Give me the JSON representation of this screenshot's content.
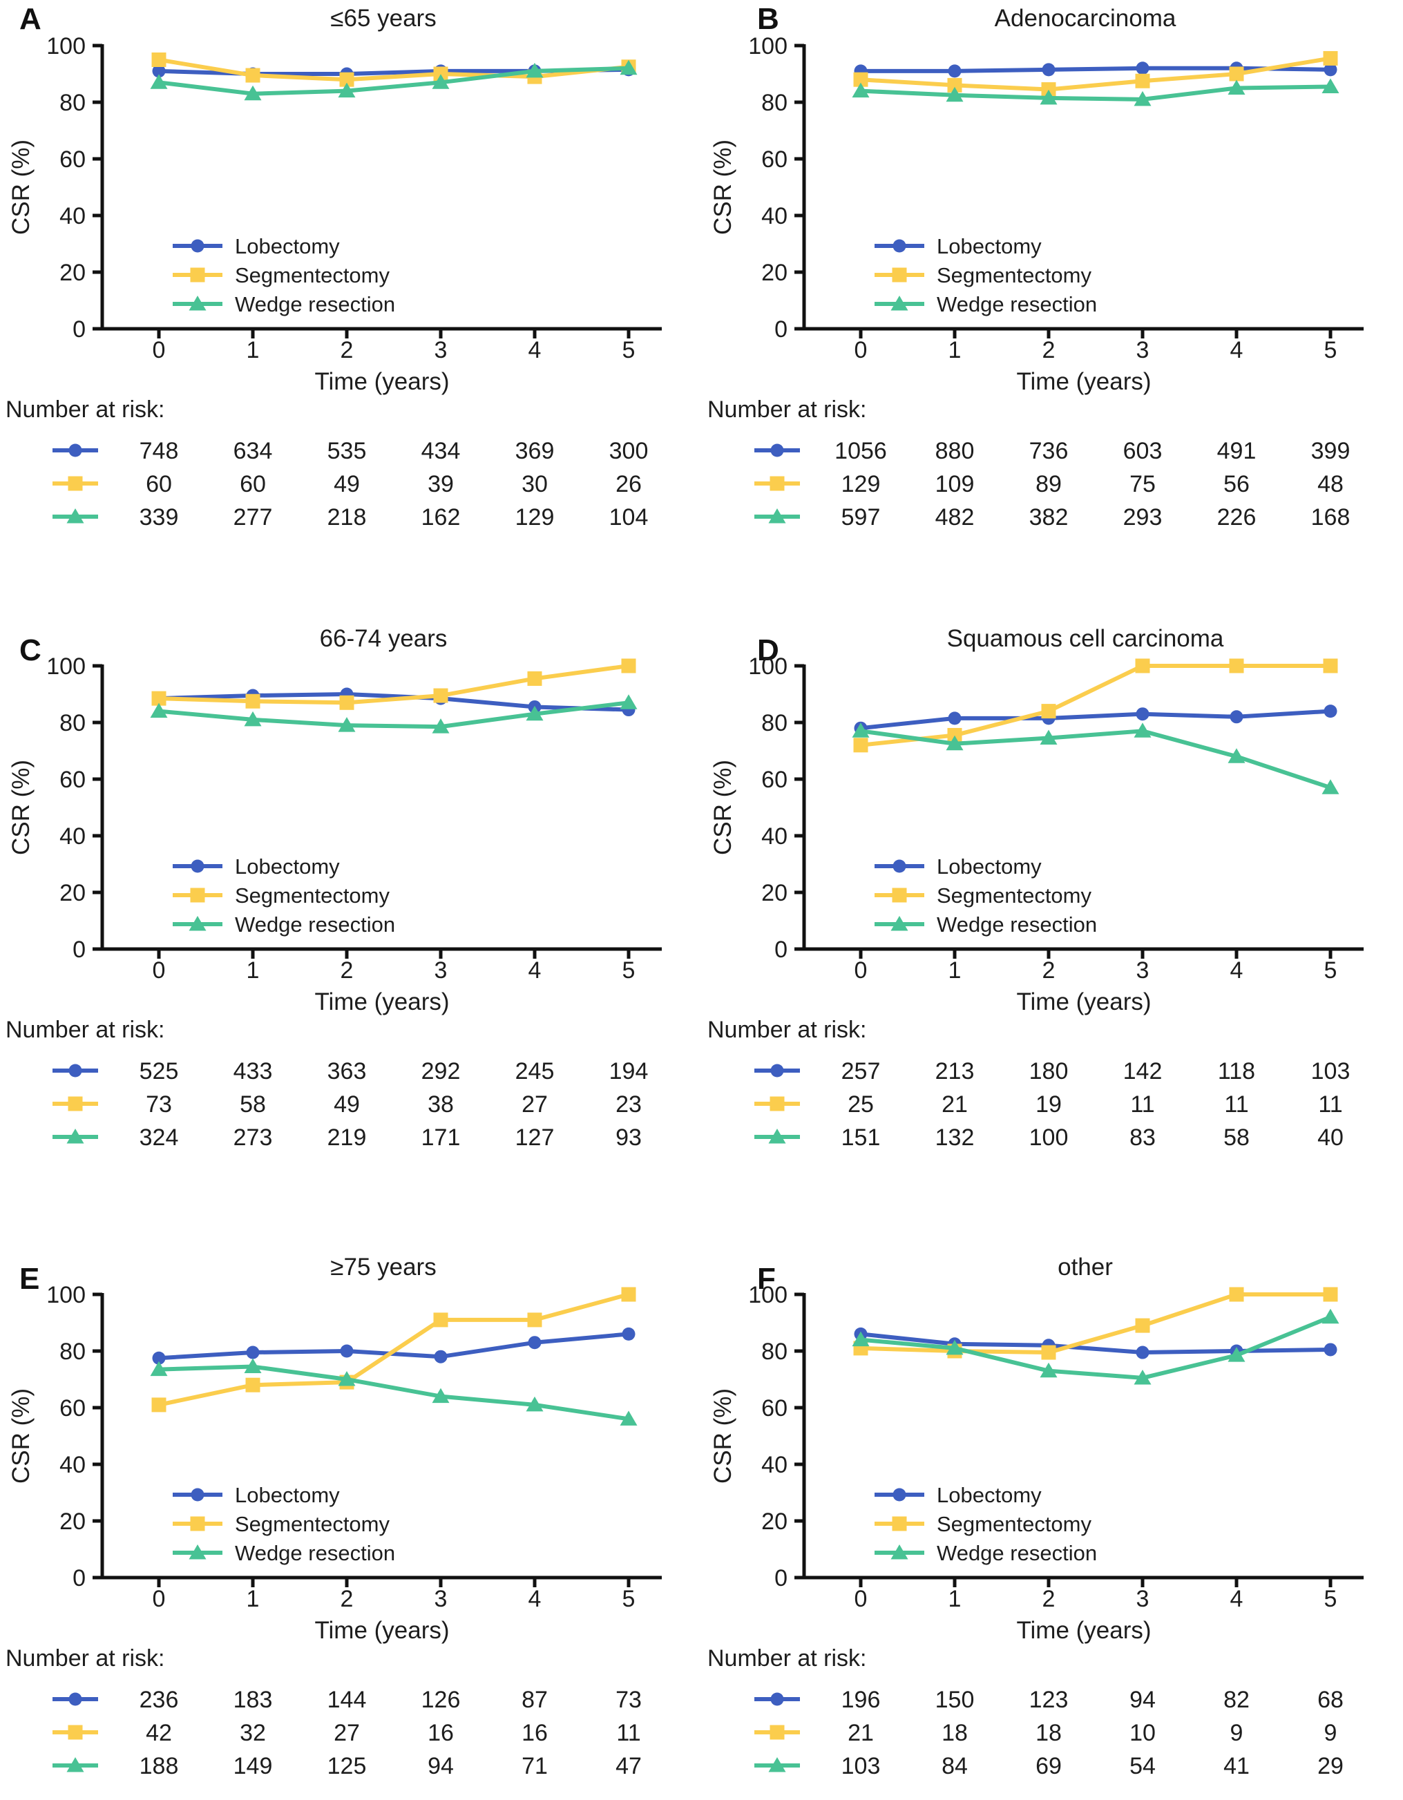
{
  "figure": {
    "ylabel": "CSR (%)",
    "xlabel": "Time (years)",
    "number_at_risk_label": "Number at risk:",
    "legend": [
      "Lobectomy",
      "Segmentectomy",
      "Wedge resection"
    ],
    "colors": {
      "lobectomy": "#3d5ec0",
      "segmentectomy": "#fbcd4d",
      "wedge_resection": "#48c294",
      "axis": "#111111",
      "text": "#1d1d1d",
      "background": "#ffffff"
    },
    "x_tick_labels": [
      "0",
      "1",
      "2",
      "3",
      "4",
      "5"
    ],
    "y_tick_labels": [
      "0",
      "20",
      "40",
      "60",
      "80",
      "100"
    ]
  },
  "chart_data": [
    {
      "panel": "A",
      "type": "line",
      "title": "≤65 years",
      "xlabel": "Time (years)",
      "ylabel": "CSR (%)",
      "x": [
        0,
        1,
        2,
        3,
        4,
        5
      ],
      "ylim": [
        0,
        100
      ],
      "yticks": [
        0,
        20,
        40,
        60,
        80,
        100
      ],
      "grid": false,
      "legend_position": "lower-left-inside",
      "series": [
        {
          "name": "Lobectomy",
          "marker": "circle",
          "color": "#3d5ec0",
          "values": [
            91,
            90,
            90,
            91,
            91,
            91.5
          ]
        },
        {
          "name": "Segmentectomy",
          "marker": "square",
          "color": "#fbcd4d",
          "values": [
            95,
            89.5,
            88,
            90,
            89,
            92.5
          ]
        },
        {
          "name": "Wedge resection",
          "marker": "triangle",
          "color": "#48c294",
          "values": [
            87,
            83,
            84,
            87,
            91,
            92
          ]
        }
      ],
      "number_at_risk": [
        [
          "748",
          "634",
          "535",
          "434",
          "369",
          "300"
        ],
        [
          "60",
          "60",
          "49",
          "39",
          "30",
          "26"
        ],
        [
          "339",
          "277",
          "218",
          "162",
          "129",
          "104"
        ]
      ]
    },
    {
      "panel": "B",
      "type": "line",
      "title": "Adenocarcinoma",
      "xlabel": "Time (years)",
      "ylabel": "CSR (%)",
      "x": [
        0,
        1,
        2,
        3,
        4,
        5
      ],
      "ylim": [
        0,
        100
      ],
      "yticks": [
        0,
        20,
        40,
        60,
        80,
        100
      ],
      "grid": false,
      "legend_position": "lower-left-inside",
      "series": [
        {
          "name": "Lobectomy",
          "marker": "circle",
          "color": "#3d5ec0",
          "values": [
            91,
            91,
            91.5,
            92,
            92,
            91.5
          ]
        },
        {
          "name": "Segmentectomy",
          "marker": "square",
          "color": "#fbcd4d",
          "values": [
            88,
            86,
            84.5,
            87.5,
            90,
            95.5
          ]
        },
        {
          "name": "Wedge resection",
          "marker": "triangle",
          "color": "#48c294",
          "values": [
            84,
            82.5,
            81.5,
            81,
            85,
            85.5
          ]
        }
      ],
      "number_at_risk": [
        [
          "1056",
          "880",
          "736",
          "603",
          "491",
          "399"
        ],
        [
          "129",
          "109",
          "89",
          "75",
          "56",
          "48"
        ],
        [
          "597",
          "482",
          "382",
          "293",
          "226",
          "168"
        ]
      ]
    },
    {
      "panel": "C",
      "type": "line",
      "title": "66-74 years",
      "xlabel": "Time (years)",
      "ylabel": "CSR (%)",
      "x": [
        0,
        1,
        2,
        3,
        4,
        5
      ],
      "ylim": [
        0,
        100
      ],
      "yticks": [
        0,
        20,
        40,
        60,
        80,
        100
      ],
      "grid": false,
      "legend_position": "lower-left-inside",
      "series": [
        {
          "name": "Lobectomy",
          "marker": "circle",
          "color": "#3d5ec0",
          "values": [
            88.5,
            89.5,
            90,
            88.5,
            85.5,
            84.5
          ]
        },
        {
          "name": "Segmentectomy",
          "marker": "square",
          "color": "#fbcd4d",
          "values": [
            88.5,
            87.5,
            87,
            89.5,
            95.5,
            100
          ]
        },
        {
          "name": "Wedge resection",
          "marker": "triangle",
          "color": "#48c294",
          "values": [
            84,
            81,
            79,
            78.5,
            83,
            87
          ]
        }
      ],
      "number_at_risk": [
        [
          "525",
          "433",
          "363",
          "292",
          "245",
          "194"
        ],
        [
          "73",
          "58",
          "49",
          "38",
          "27",
          "23"
        ],
        [
          "324",
          "273",
          "219",
          "171",
          "127",
          "93"
        ]
      ]
    },
    {
      "panel": "D",
      "type": "line",
      "title": "Squamous cell carcinoma",
      "xlabel": "Time (years)",
      "ylabel": "CSR (%)",
      "x": [
        0,
        1,
        2,
        3,
        4,
        5
      ],
      "ylim": [
        0,
        100
      ],
      "yticks": [
        0,
        20,
        40,
        60,
        80,
        100
      ],
      "grid": false,
      "legend_position": "lower-left-inside",
      "series": [
        {
          "name": "Lobectomy",
          "marker": "circle",
          "color": "#3d5ec0",
          "values": [
            78,
            81.5,
            81.5,
            83,
            82,
            84
          ]
        },
        {
          "name": "Segmentectomy",
          "marker": "square",
          "color": "#fbcd4d",
          "values": [
            72,
            75.5,
            84,
            100,
            100,
            100
          ]
        },
        {
          "name": "Wedge resection",
          "marker": "triangle",
          "color": "#48c294",
          "values": [
            77,
            72.5,
            74.5,
            77,
            68,
            57
          ]
        }
      ],
      "number_at_risk": [
        [
          "257",
          "213",
          "180",
          "142",
          "118",
          "103"
        ],
        [
          "25",
          "21",
          "19",
          "11",
          "11",
          "11"
        ],
        [
          "151",
          "132",
          "100",
          "83",
          "58",
          "40"
        ]
      ]
    },
    {
      "panel": "E",
      "type": "line",
      "title": "≥75 years",
      "xlabel": "Time (years)",
      "ylabel": "CSR (%)",
      "x": [
        0,
        1,
        2,
        3,
        4,
        5
      ],
      "ylim": [
        0,
        100
      ],
      "yticks": [
        0,
        20,
        40,
        60,
        80,
        100
      ],
      "grid": false,
      "legend_position": "lower-left-inside",
      "series": [
        {
          "name": "Lobectomy",
          "marker": "circle",
          "color": "#3d5ec0",
          "values": [
            77.5,
            79.5,
            80,
            78,
            83,
            86
          ]
        },
        {
          "name": "Segmentectomy",
          "marker": "square",
          "color": "#fbcd4d",
          "values": [
            61,
            68,
            69,
            91,
            91,
            100
          ]
        },
        {
          "name": "Wedge resection",
          "marker": "triangle",
          "color": "#48c294",
          "values": [
            73.5,
            74.5,
            70,
            64,
            61,
            56
          ]
        }
      ],
      "number_at_risk": [
        [
          "236",
          "183",
          "144",
          "126",
          "87",
          "73"
        ],
        [
          "42",
          "32",
          "27",
          "16",
          "16",
          "11"
        ],
        [
          "188",
          "149",
          "125",
          "94",
          "71",
          "47"
        ]
      ]
    },
    {
      "panel": "F",
      "type": "line",
      "title": "other",
      "xlabel": "Time (years)",
      "ylabel": "CSR (%)",
      "x": [
        0,
        1,
        2,
        3,
        4,
        5
      ],
      "ylim": [
        0,
        100
      ],
      "yticks": [
        0,
        20,
        40,
        60,
        80,
        100
      ],
      "grid": false,
      "legend_position": "lower-left-inside",
      "series": [
        {
          "name": "Lobectomy",
          "marker": "circle",
          "color": "#3d5ec0",
          "values": [
            86,
            82.5,
            82,
            79.5,
            80,
            80.5
          ]
        },
        {
          "name": "Segmentectomy",
          "marker": "square",
          "color": "#fbcd4d",
          "values": [
            81,
            80,
            79.5,
            89,
            100,
            100
          ]
        },
        {
          "name": "Wedge resection",
          "marker": "triangle",
          "color": "#48c294",
          "values": [
            84,
            81,
            73,
            70.5,
            78.5,
            92
          ]
        }
      ],
      "number_at_risk": [
        [
          "196",
          "150",
          "123",
          "94",
          "82",
          "68"
        ],
        [
          "21",
          "18",
          "18",
          "10",
          "9",
          "9"
        ],
        [
          "103",
          "84",
          "69",
          "54",
          "41",
          "29"
        ]
      ]
    }
  ]
}
